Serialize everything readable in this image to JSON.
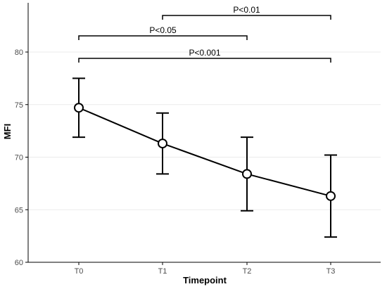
{
  "chart_data": {
    "type": "line",
    "xlabel": "Timepoint",
    "ylabel": "MFI",
    "categories": [
      "T0",
      "T1",
      "T2",
      "T3"
    ],
    "ylim": [
      60,
      84
    ],
    "yticks": [
      60,
      65,
      70,
      75,
      80
    ],
    "grid": "horizontal",
    "series": [
      {
        "values": [
          74.7,
          71.3,
          68.4,
          66.3
        ],
        "error_low": [
          71.9,
          68.4,
          64.9,
          62.4
        ],
        "error_high": [
          77.5,
          74.2,
          71.9,
          70.2
        ]
      }
    ],
    "annotations": [
      {
        "label": "P<0.01",
        "from": "T1",
        "to": "T3"
      },
      {
        "label": "P<0.05",
        "from": "T0",
        "to": "T2"
      },
      {
        "label": "P<0.001",
        "from": "T0",
        "to": "T3"
      }
    ],
    "colors": {
      "line": "#000000",
      "marker_fill": "#ffffff",
      "grid": "#ebebeb",
      "axis": "#000000",
      "tick_label": "#4d4d4d"
    }
  }
}
